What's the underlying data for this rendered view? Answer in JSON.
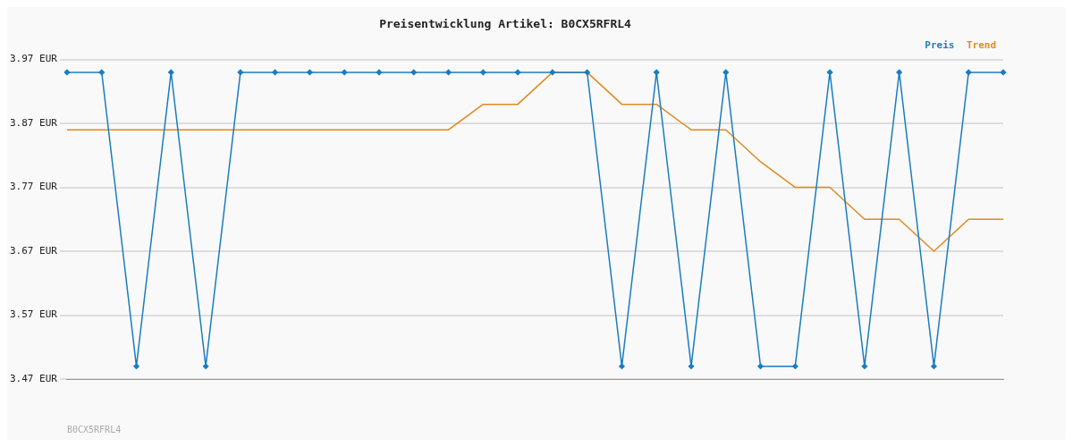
{
  "chart_data": {
    "type": "line",
    "title": "Preisentwicklung Artikel: B0CX5RFRL4",
    "categories": [
      null,
      null,
      null,
      null,
      null,
      null,
      null,
      null,
      null,
      null,
      null,
      null,
      null,
      null,
      null,
      null,
      null,
      null,
      null,
      null,
      null,
      null,
      null,
      null,
      null,
      null,
      null,
      null
    ],
    "series": [
      {
        "name": "Preis",
        "color": "#1a7dc0",
        "marker": "diamond",
        "values": [
          3.95,
          3.95,
          3.49,
          3.95,
          3.49,
          3.95,
          3.95,
          3.95,
          3.95,
          3.95,
          3.95,
          3.95,
          3.95,
          3.95,
          3.95,
          3.95,
          3.49,
          3.95,
          3.49,
          3.95,
          3.49,
          3.49,
          3.95,
          3.49,
          3.95,
          3.49,
          3.95,
          3.95
        ]
      },
      {
        "name": "Trend",
        "color": "#e08a1e",
        "marker": "none",
        "values": [
          3.86,
          3.86,
          3.86,
          3.86,
          3.86,
          3.86,
          3.86,
          3.86,
          3.86,
          3.86,
          3.86,
          3.86,
          3.9,
          3.9,
          3.95,
          3.95,
          3.9,
          3.9,
          3.86,
          3.86,
          3.81,
          3.77,
          3.77,
          3.72,
          3.72,
          3.67,
          3.72,
          3.72
        ]
      }
    ],
    "ylim": [
      3.47,
      3.97
    ],
    "yticks": [
      {
        "value": 3.47,
        "label": "3.47 EUR"
      },
      {
        "value": 3.57,
        "label": "3.57 EUR"
      },
      {
        "value": 3.67,
        "label": "3.67 EUR"
      },
      {
        "value": 3.77,
        "label": "3.77 EUR"
      },
      {
        "value": 3.87,
        "label": "3.87 EUR"
      },
      {
        "value": 3.97,
        "label": "3.97 EUR"
      }
    ],
    "grid": "y",
    "legend": "top right",
    "annotations": [
      "B0CX5RFRL4"
    ]
  }
}
